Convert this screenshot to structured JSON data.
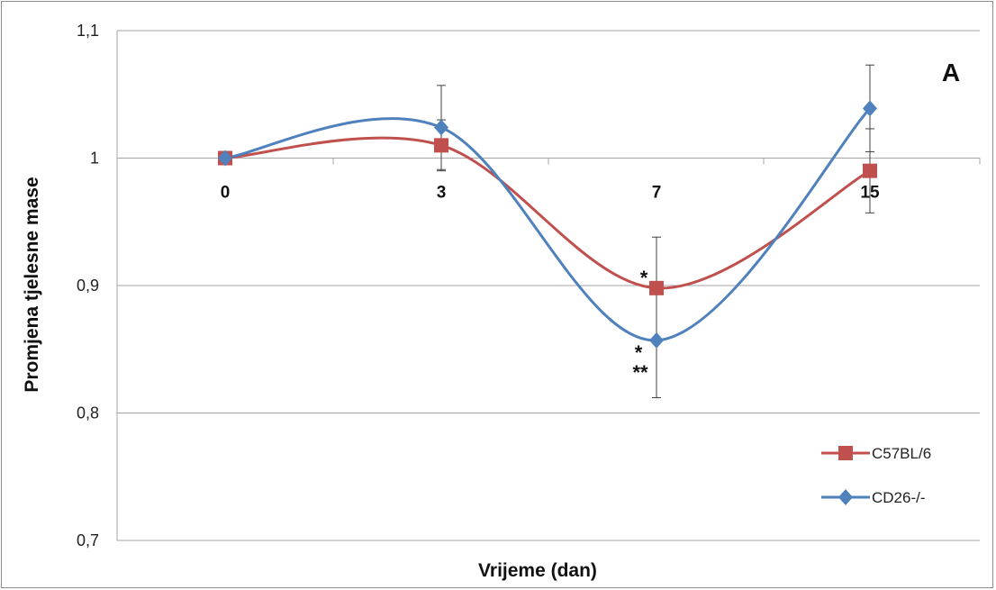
{
  "chart_data": {
    "type": "line",
    "title": "",
    "panel_label": "A",
    "xlabel": "Vrijeme (dan)",
    "ylabel": "Promjena tjelesne mase",
    "categories": [
      "0",
      "3",
      "7",
      "15"
    ],
    "ylim": [
      0.7,
      1.1
    ],
    "yticks": [
      "0,7",
      "0,8",
      "0,9",
      "1",
      "1,1"
    ],
    "ytick_values": [
      0.7,
      0.8,
      0.9,
      1.0,
      1.1
    ],
    "grid": true,
    "smooth": true,
    "legend_position": "bottom-right",
    "series": [
      {
        "name": "C57BL/6",
        "color": "#c0504d",
        "marker": "square",
        "values": [
          1.0,
          1.01,
          0.898,
          0.99
        ],
        "errors": [
          0,
          0.02,
          0.04,
          0.033
        ]
      },
      {
        "name": "CD26-/-",
        "color": "#4f81bd",
        "marker": "diamond",
        "values": [
          1.0,
          1.024,
          0.857,
          1.039
        ],
        "errors": [
          0,
          0.033,
          0.045,
          0.034
        ]
      }
    ],
    "annotations": [
      {
        "text": "*",
        "category": "7",
        "series": "C57BL/6"
      },
      {
        "text": "*",
        "category": "7",
        "series": "CD26-/-"
      },
      {
        "text": "**",
        "category": "7",
        "series": "CD26-/-"
      }
    ]
  }
}
